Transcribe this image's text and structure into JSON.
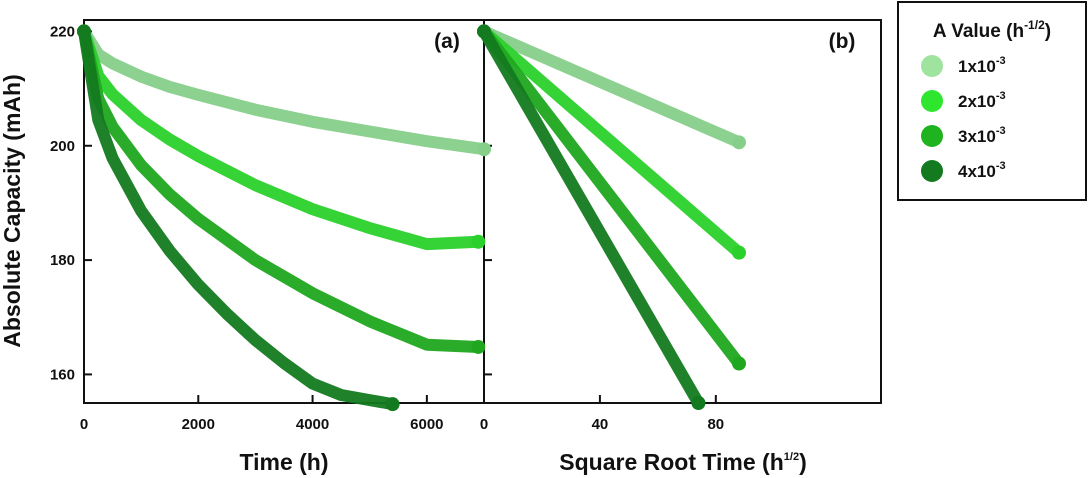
{
  "chart_data": [
    {
      "type": "line",
      "panel": "(a)",
      "xlabel": "Time (h)",
      "ylabel": "Absolute Capacity (mAh)",
      "xlim": [
        0,
        7000
      ],
      "ylim": [
        155,
        222
      ],
      "xticks": [
        0,
        2000,
        4000,
        6000
      ],
      "yticks": [
        160,
        180,
        200,
        220
      ],
      "series": [
        {
          "name": "1x10-3",
          "color": "#86cf8a",
          "x": [
            0,
            250,
            500,
            1000,
            1500,
            2000,
            3000,
            4000,
            5000,
            6000,
            7000
          ],
          "y": [
            220,
            216.0,
            214.4,
            212.1,
            210.3,
            208.9,
            206.3,
            204.2,
            202.5,
            200.8,
            199.4
          ]
        },
        {
          "name": "2x10-3",
          "color": "#2bd12b",
          "x": [
            0,
            250,
            500,
            1000,
            1500,
            2000,
            3000,
            4000,
            5000,
            6000,
            6900
          ],
          "y": [
            220,
            212.2,
            209.0,
            204.5,
            201.1,
            198.2,
            193.1,
            188.9,
            185.6,
            182.8,
            183.2
          ]
        },
        {
          "name": "3x10-3",
          "color": "#1fa81f",
          "x": [
            0,
            250,
            500,
            1000,
            1500,
            2000,
            3000,
            4000,
            5000,
            6000,
            6900
          ],
          "y": [
            220,
            208.2,
            203.3,
            196.6,
            191.5,
            187.2,
            180.0,
            174.2,
            169.3,
            165.2,
            164.8
          ]
        },
        {
          "name": "4x10-3",
          "color": "#137a1f",
          "x": [
            0,
            250,
            500,
            1000,
            1500,
            2000,
            2500,
            3000,
            3500,
            4000,
            4500,
            5000,
            5400
          ],
          "y": [
            220,
            204.5,
            197.8,
            188.6,
            181.6,
            175.7,
            170.6,
            166.0,
            162.0,
            158.4,
            156.4,
            155.5,
            154.8
          ]
        }
      ]
    },
    {
      "type": "line",
      "panel": "(b)",
      "xlabel": "Square Root Time (h",
      "xlabel_sup": "1/2",
      "xlabel_end": ")",
      "xlim": [
        0,
        137
      ],
      "ylim": [
        155,
        222
      ],
      "xticks": [
        0,
        40,
        80
      ],
      "series": [
        {
          "name": "1x10-3",
          "color": "#86cf8a",
          "x": [
            0,
            88
          ],
          "y": [
            220,
            200.6
          ]
        },
        {
          "name": "2x10-3",
          "color": "#2bd12b",
          "x": [
            0,
            88
          ],
          "y": [
            220,
            181.3
          ]
        },
        {
          "name": "3x10-3",
          "color": "#1fa81f",
          "x": [
            0,
            88
          ],
          "y": [
            220,
            161.9
          ]
        },
        {
          "name": "4x10-3",
          "color": "#137a1f",
          "x": [
            0,
            74
          ],
          "y": [
            220,
            155.0
          ]
        }
      ]
    }
  ],
  "legend": {
    "title": "A Value (h",
    "title_sup": "-1/2",
    "title_end": ")",
    "items": [
      {
        "label": "1x10",
        "sup": "-3",
        "color": "#9ee39e"
      },
      {
        "label": "2x10",
        "sup": "-3",
        "color": "#2ee62e"
      },
      {
        "label": "3x10",
        "sup": "-3",
        "color": "#1fb31f"
      },
      {
        "label": "4x10",
        "sup": "-3",
        "color": "#137a1f"
      }
    ]
  }
}
